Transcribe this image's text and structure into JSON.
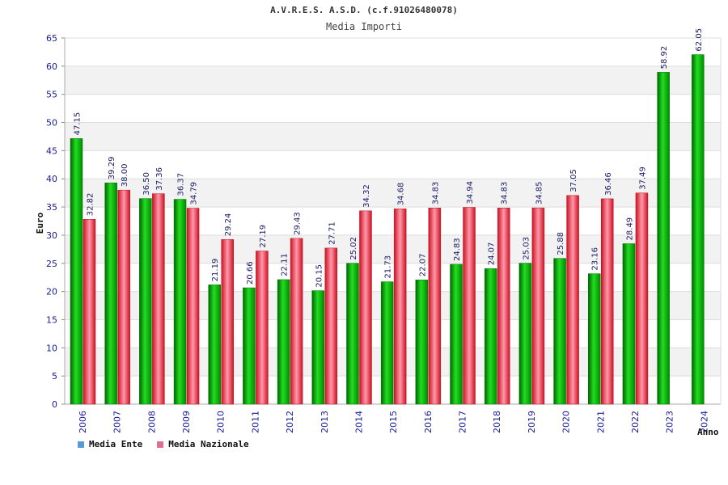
{
  "chart_data": {
    "type": "bar",
    "title": "A.V.R.E.S. A.S.D. (c.f.91026480078)",
    "subtitle": "Media Importi",
    "xlabel": "Anno",
    "ylabel": "Euro",
    "ylim": [
      0,
      65
    ],
    "yticks": [
      0,
      5,
      10,
      15,
      20,
      25,
      30,
      35,
      40,
      45,
      50,
      55,
      60,
      65
    ],
    "categories": [
      "2006",
      "2007",
      "2008",
      "2009",
      "2010",
      "2011",
      "2012",
      "2013",
      "2014",
      "2015",
      "2016",
      "2017",
      "2018",
      "2019",
      "2020",
      "2021",
      "2022",
      "2023",
      "2024"
    ],
    "series": [
      {
        "name": "Media Ente",
        "color": "#00aa00",
        "legend_color": "#5b9bd5",
        "values": [
          47.15,
          39.29,
          36.5,
          36.37,
          21.19,
          20.66,
          22.11,
          20.15,
          25.02,
          21.73,
          22.07,
          24.83,
          24.07,
          25.03,
          25.88,
          23.16,
          28.49,
          58.92,
          62.05
        ],
        "labels": [
          "47.15",
          "39.29",
          "36.50",
          "36.37",
          "21.19",
          "20.66",
          "22.11",
          "20.15",
          "25.02",
          "21.73",
          "22.07",
          "24.83",
          "24.07",
          "25.03",
          "25.88",
          "23.16",
          "28.49",
          "58.92",
          "62.05"
        ]
      },
      {
        "name": "Media Nazionale",
        "color": "#dd2233",
        "legend_color": "#e07090",
        "values": [
          32.82,
          38.0,
          37.36,
          34.79,
          29.24,
          27.19,
          29.43,
          27.71,
          34.32,
          34.68,
          34.83,
          34.94,
          34.83,
          34.85,
          37.05,
          36.46,
          37.49,
          null,
          null
        ],
        "labels": [
          "32.82",
          "38.00",
          "37.36",
          "34.79",
          "29.24",
          "27.19",
          "29.43",
          "27.71",
          "34.32",
          "34.68",
          "34.83",
          "34.94",
          "34.83",
          "34.85",
          "37.05",
          "36.46",
          "37.49",
          null,
          null
        ]
      }
    ],
    "legend": "bottom-left",
    "grid": true
  }
}
